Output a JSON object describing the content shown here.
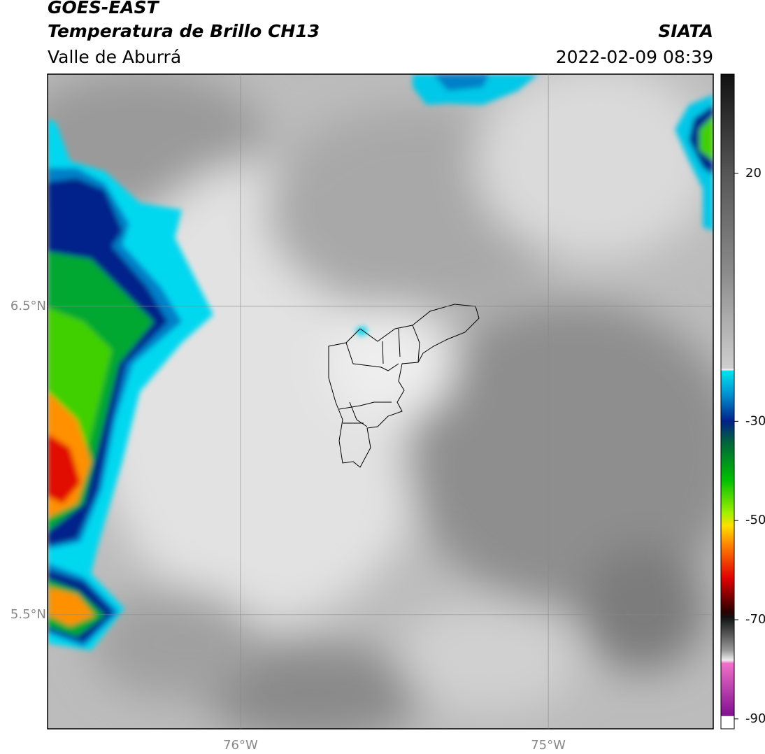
{
  "header": {
    "title": "GOES-EAST",
    "subtitle": "Temperatura de Brillo CH13",
    "source": "SIATA",
    "region": "Valle de Aburrá",
    "datetime": "2022-02-09 08:39"
  },
  "map": {
    "lonlim": [
      -76.627,
      -74.464
    ],
    "latlim": [
      5.13,
      7.253
    ],
    "xticks": [
      {
        "value": -76,
        "label": "76°W"
      },
      {
        "value": -75,
        "label": "75°W"
      }
    ],
    "yticks": [
      {
        "value": 6.5,
        "label": "6.5°N"
      },
      {
        "value": 5.5,
        "label": "5.5°N"
      }
    ],
    "grid": true
  },
  "colorbar": {
    "lim": [
      -92,
      40
    ],
    "ticks": [
      20,
      -30,
      -50,
      -70,
      -90
    ]
  }
}
